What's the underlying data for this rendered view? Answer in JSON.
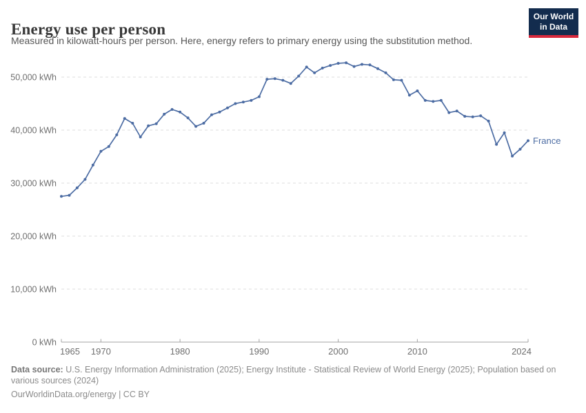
{
  "header": {
    "title": "Energy use per person",
    "subtitle": "Measured in kilowatt-hours per person. Here, energy refers to primary energy using the substitution method.",
    "logo": {
      "line1": "Our World",
      "line2": "in Data",
      "bg_color": "#132c4e",
      "accent_color": "#d8283c"
    }
  },
  "chart_data": {
    "type": "line",
    "title": "Energy use per person",
    "xlabel": "",
    "ylabel": "kWh",
    "xlim": [
      1965,
      2024
    ],
    "ylim": [
      0,
      55000
    ],
    "grid": "horizontal-dashed",
    "legend": "end-of-line-label",
    "end_label": "France",
    "line_color": "#4C6CA3",
    "x": [
      1965,
      1966,
      1967,
      1968,
      1969,
      1970,
      1971,
      1972,
      1973,
      1974,
      1975,
      1976,
      1977,
      1978,
      1979,
      1980,
      1981,
      1982,
      1983,
      1984,
      1985,
      1986,
      1987,
      1988,
      1989,
      1990,
      1991,
      1992,
      1993,
      1994,
      1995,
      1996,
      1997,
      1998,
      1999,
      2000,
      2001,
      2002,
      2003,
      2004,
      2005,
      2006,
      2007,
      2008,
      2009,
      2010,
      2011,
      2012,
      2013,
      2014,
      2015,
      2016,
      2017,
      2018,
      2019,
      2020,
      2021,
      2022,
      2023,
      2024
    ],
    "series": [
      {
        "name": "France",
        "color": "#4C6CA3",
        "values": [
          27500,
          27700,
          29100,
          30700,
          33400,
          36000,
          36900,
          39100,
          42200,
          41300,
          38700,
          40800,
          41200,
          43000,
          43900,
          43400,
          42300,
          40700,
          41300,
          42900,
          43400,
          44200,
          45000,
          45300,
          45600,
          46300,
          49600,
          49700,
          49400,
          48800,
          50200,
          51900,
          50800,
          51700,
          52200,
          52600,
          52700,
          52000,
          52400,
          52300,
          51600,
          50800,
          49500,
          49400,
          46600,
          47400,
          45600,
          45400,
          45600,
          43300,
          43600,
          42600,
          42500,
          42700,
          41700,
          37300,
          39500,
          35100,
          36400,
          38000
        ]
      }
    ],
    "yticks": [
      {
        "value": 0,
        "label": "0 kWh"
      },
      {
        "value": 10000,
        "label": "10,000 kWh"
      },
      {
        "value": 20000,
        "label": "20,000 kWh"
      },
      {
        "value": 30000,
        "label": "30,000 kWh"
      },
      {
        "value": 40000,
        "label": "40,000 kWh"
      },
      {
        "value": 50000,
        "label": "50,000 kWh"
      }
    ],
    "xticks": [
      {
        "value": 1965,
        "label": "1965"
      },
      {
        "value": 1970,
        "label": "1970"
      },
      {
        "value": 1980,
        "label": "1980"
      },
      {
        "value": 1990,
        "label": "1990"
      },
      {
        "value": 2000,
        "label": "2000"
      },
      {
        "value": 2010,
        "label": "2010"
      },
      {
        "value": 2024,
        "label": "2024"
      }
    ]
  },
  "footer": {
    "source_prefix": "Data source:",
    "source_text": " U.S. Energy Information Administration (2025); Energy Institute - Statistical Review of World Energy (2025); Population based on various sources (2024)",
    "attribution": "OurWorldinData.org/energy | CC BY"
  }
}
